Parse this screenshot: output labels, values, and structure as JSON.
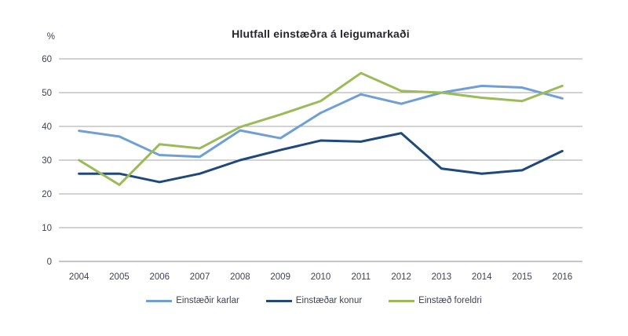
{
  "chart_data": {
    "type": "line",
    "title": "Hlutfall einstæðra á leigumarkaði",
    "ylabel": "%",
    "xlabel": "",
    "x": [
      "2004",
      "2005",
      "2006",
      "2007",
      "2008",
      "2009",
      "2010",
      "2011",
      "2012",
      "2013",
      "2014",
      "2015",
      "2016"
    ],
    "series": [
      {
        "name": "Einstæðir karlar",
        "color": "#6f9fd5",
        "values": [
          38.7,
          37,
          31.5,
          31,
          38.8,
          36.5,
          44,
          49.5,
          46.7,
          50,
          52,
          51.5,
          48.3
        ]
      },
      {
        "name": "Einstæðar konur",
        "color": "#1f497d",
        "values": [
          26,
          26,
          23.5,
          26,
          30,
          33,
          35.8,
          35.5,
          38,
          27.5,
          26,
          27,
          32.7
        ]
      },
      {
        "name": "Einstæð foreldri",
        "color": "#9bbb59",
        "values": [
          30,
          22.7,
          34.7,
          33.5,
          39.8,
          43.5,
          47.5,
          55.8,
          50.5,
          50,
          48.5,
          47.5,
          52
        ]
      }
    ],
    "ylim": [
      0,
      60
    ],
    "yticks": [
      0,
      10,
      20,
      30,
      40,
      50,
      60
    ],
    "grid": true,
    "gridline_color": "#a6a6a6",
    "axisline_color": "#8c8c8c",
    "legend_position": "bottom"
  }
}
